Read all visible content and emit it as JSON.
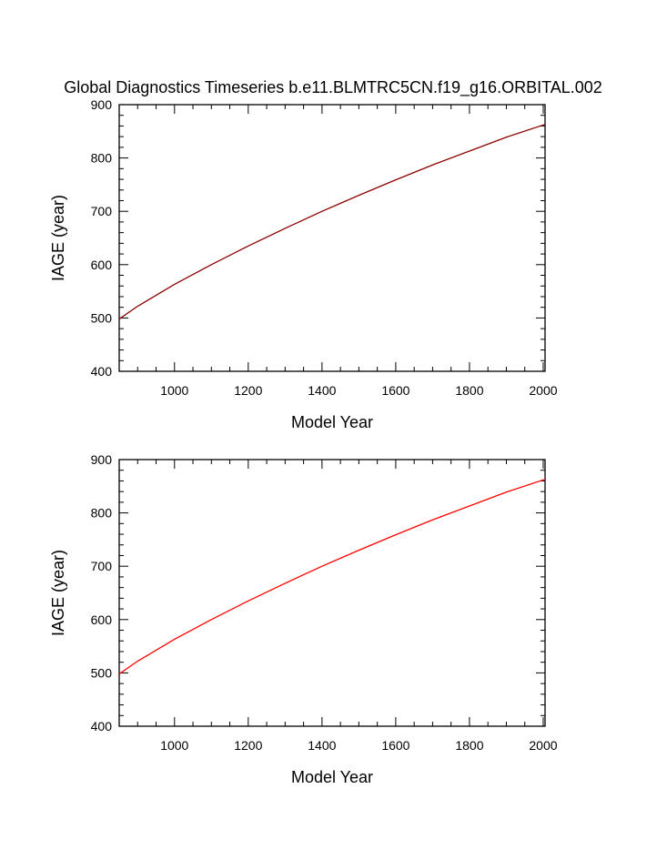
{
  "figure_title": "Global Diagnostics Timeseries b.e11.BLMTRC5CN.f19_g16.ORBITAL.002",
  "chart_data": [
    {
      "type": "line",
      "xlabel": "Model Year",
      "ylabel": "IAGE (year)",
      "xlim": [
        850,
        2005
      ],
      "ylim": [
        400,
        900
      ],
      "xticks": [
        1000,
        1200,
        1400,
        1600,
        1800,
        2000
      ],
      "yticks": [
        400,
        500,
        600,
        700,
        800,
        900
      ],
      "xtick_labels": [
        "1000",
        "1200",
        "1400",
        "1600",
        "1800",
        "2000"
      ],
      "ytick_labels": [
        "400",
        "500",
        "600",
        "700",
        "800",
        "900"
      ],
      "grid": false,
      "series": [
        {
          "color": "#8b0000",
          "x": [
            850,
            900,
            1000,
            1100,
            1200,
            1300,
            1400,
            1500,
            1600,
            1700,
            1800,
            1900,
            2005
          ],
          "y": [
            498,
            522,
            563,
            600,
            635,
            668,
            700,
            730,
            759,
            787,
            813,
            839,
            863
          ]
        }
      ]
    },
    {
      "type": "line",
      "xlabel": "Model Year",
      "ylabel": "IAGE (year)",
      "xlim": [
        850,
        2005
      ],
      "ylim": [
        400,
        900
      ],
      "xticks": [
        1000,
        1200,
        1400,
        1600,
        1800,
        2000
      ],
      "yticks": [
        400,
        500,
        600,
        700,
        800,
        900
      ],
      "xtick_labels": [
        "1000",
        "1200",
        "1400",
        "1600",
        "1800",
        "2000"
      ],
      "ytick_labels": [
        "400",
        "500",
        "600",
        "700",
        "800",
        "900"
      ],
      "grid": false,
      "series": [
        {
          "color": "#ff0000",
          "x": [
            850,
            900,
            1000,
            1100,
            1200,
            1300,
            1400,
            1500,
            1600,
            1700,
            1800,
            1900,
            2005
          ],
          "y": [
            498,
            522,
            563,
            600,
            635,
            668,
            700,
            730,
            759,
            787,
            813,
            839,
            863
          ]
        }
      ]
    }
  ]
}
